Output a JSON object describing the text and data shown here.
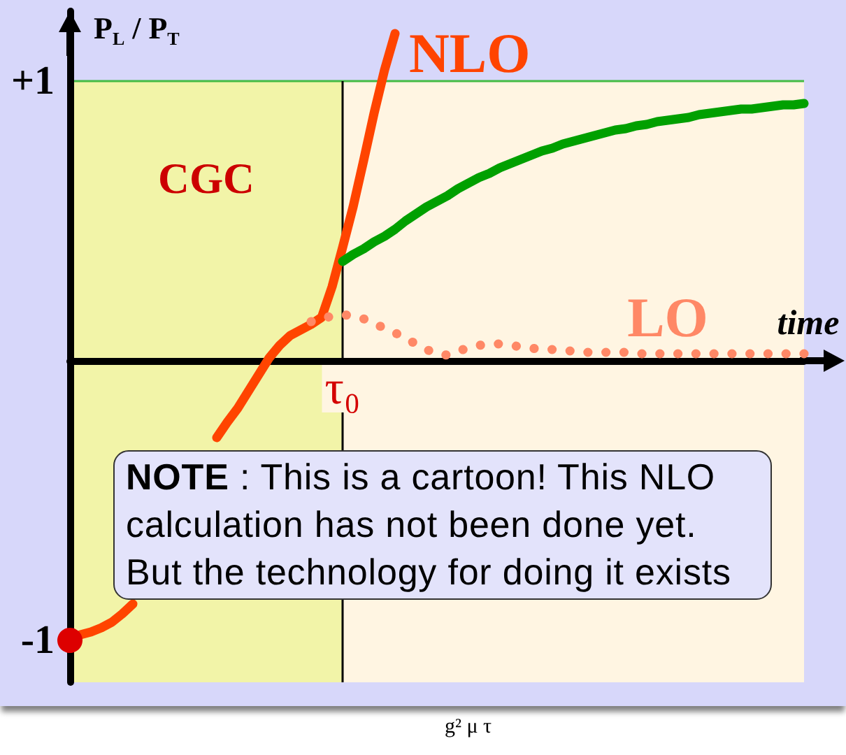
{
  "chart_data": {
    "type": "line",
    "xlabel": "time",
    "ylabel": "P$_{L}$ / P$_{T}$",
    "categories": [
      null,
      null,
      null,
      null,
      null,
      null,
      null,
      null,
      null,
      null,
      null,
      null,
      null,
      null,
      null,
      null,
      null,
      null,
      null,
      null,
      null,
      null,
      null,
      null,
      null,
      null,
      "τ₀",
      null,
      null,
      null,
      null,
      null,
      null,
      null,
      null,
      null,
      null,
      null,
      null,
      null,
      null,
      null,
      null,
      null,
      null,
      null,
      null,
      null,
      null,
      null,
      null,
      null,
      null,
      null,
      null,
      null,
      null,
      null,
      null,
      null,
      null,
      null,
      null,
      null,
      null,
      null,
      null,
      null,
      null,
      null,
      null
    ],
    "series": [
      {
        "name": "NLO",
        "color": "#ff4400",
        "values": [
          null,
          -0.98,
          -0.97,
          -0.955,
          -0.935,
          -0.905,
          -0.87,
          null,
          null,
          null,
          null,
          null,
          null,
          null,
          -0.275,
          -0.22,
          -0.17,
          -0.11,
          -0.05,
          0.01,
          0.055,
          0.09,
          0.11,
          0.13,
          0.155,
          0.265,
          0.405,
          0.55,
          0.715,
          0.885,
          1.04,
          1.17,
          null,
          null,
          null,
          null,
          null,
          null,
          null,
          null,
          null,
          null,
          null,
          null,
          null,
          null,
          null,
          null,
          null,
          null,
          null,
          null,
          null,
          null,
          null,
          null,
          null,
          null,
          null,
          null,
          null,
          null,
          null,
          null,
          null,
          null,
          null,
          null,
          null,
          null,
          null
        ]
      },
      {
        "color": "#00a000",
        "values": [
          null,
          null,
          null,
          null,
          null,
          null,
          null,
          null,
          null,
          null,
          null,
          null,
          null,
          null,
          null,
          null,
          null,
          null,
          null,
          null,
          null,
          null,
          null,
          null,
          null,
          null,
          0.355,
          0.38,
          0.4,
          0.425,
          0.445,
          0.47,
          0.5,
          0.525,
          0.55,
          0.57,
          0.59,
          0.615,
          0.635,
          0.655,
          0.67,
          0.69,
          0.705,
          0.72,
          0.735,
          0.75,
          0.76,
          0.775,
          0.785,
          0.795,
          0.805,
          0.815,
          0.825,
          0.83,
          0.84,
          0.845,
          0.855,
          0.86,
          0.865,
          0.87,
          0.88,
          0.885,
          0.89,
          0.895,
          0.9,
          0.9,
          0.905,
          0.91,
          0.915,
          0.915,
          0.92
        ]
      },
      {
        "name": "LO",
        "color": "#ff8866",
        "line_style": "dotted",
        "values": [
          null,
          null,
          null,
          null,
          null,
          null,
          null,
          null,
          null,
          null,
          null,
          null,
          null,
          null,
          null,
          null,
          null,
          null,
          null,
          null,
          null,
          null,
          null,
          0.14,
          0.15,
          0.16,
          0.165,
          0.16,
          0.15,
          0.135,
          0.115,
          0.1,
          0.08,
          0.06,
          0.04,
          0.025,
          0.02,
          0.035,
          0.045,
          0.055,
          0.06,
          0.06,
          0.055,
          0.05,
          0.045,
          0.04,
          0.04,
          0.035,
          0.035,
          0.03,
          0.03,
          0.03,
          0.03,
          0.03,
          0.025,
          0.025,
          0.025,
          0.025,
          0.025,
          0.025,
          0.025,
          0.025,
          0.025,
          0.025,
          0.025,
          0.025,
          0.025,
          0.025,
          0.025,
          0.025,
          0.025
        ]
      },
      {
        "type": "scatter",
        "color": "#dd0000",
        "marker": "circle",
        "values": [
          -1,
          null,
          null,
          null,
          null,
          null,
          null,
          null,
          null,
          null,
          null,
          null,
          null,
          null,
          null,
          null,
          null,
          null,
          null,
          null,
          null,
          null,
          null,
          null,
          null,
          null,
          null,
          null,
          null,
          null,
          null,
          null,
          null,
          null,
          null,
          null,
          null,
          null,
          null,
          null,
          null,
          null,
          null,
          null,
          null,
          null,
          null,
          null,
          null,
          null,
          null,
          null,
          null,
          null,
          null,
          null,
          null,
          null,
          null,
          null,
          null,
          null,
          null,
          null,
          null,
          null,
          null,
          null,
          null,
          null,
          null
        ]
      }
    ],
    "ylim": [
      -1.15,
      1.25
    ],
    "yticks": [
      {
        "value": 1,
        "label": "+1"
      },
      -1
    ],
    "ref_lines": [
      {
        "axis": "y",
        "value": 1,
        "color": "#44bb44"
      },
      {
        "axis": "x",
        "value": "τ₀",
        "color": "#000000"
      }
    ],
    "annotations": [
      "CGC",
      "NOTE : This is a cartoon! This NLO\ncalculation has not been done yet.\nBut the technology for doing it exists",
      "g² μ τ"
    ],
    "marker": "none",
    "line_style": "solid",
    "grid": false,
    "legend": false
  }
}
